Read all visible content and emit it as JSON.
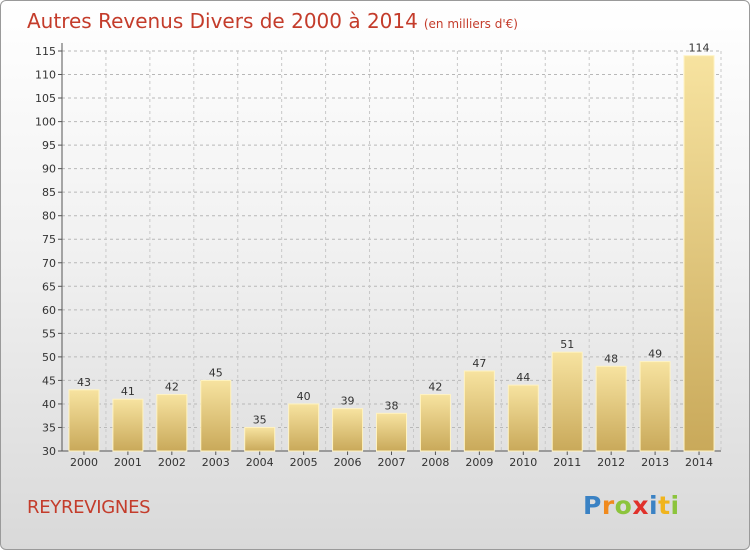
{
  "header": {
    "title": "Autres Revenus Divers de 2000 à 2014",
    "subtitle": "(en milliers d'€)"
  },
  "footer": {
    "commune": "REYREVIGNES",
    "logo": "Proxiti"
  },
  "colors": {
    "title": "#c43c2b",
    "bar_light": "#f7e3a0",
    "bar_dark": "#c9a95a"
  },
  "chart_data": {
    "type": "bar",
    "title": "Autres Revenus Divers de 2000 à 2014",
    "subtitle": "(en milliers d'€)",
    "xlabel": "",
    "ylabel": "",
    "categories": [
      "2000",
      "2001",
      "2002",
      "2003",
      "2004",
      "2005",
      "2006",
      "2007",
      "2008",
      "2009",
      "2010",
      "2011",
      "2012",
      "2013",
      "2014"
    ],
    "values": [
      43,
      41,
      42,
      45,
      35,
      40,
      39,
      38,
      42,
      47,
      44,
      51,
      48,
      49,
      114
    ],
    "ylim": [
      30,
      115
    ],
    "yticks": [
      30,
      35,
      40,
      45,
      50,
      55,
      60,
      65,
      70,
      75,
      80,
      85,
      90,
      95,
      100,
      105,
      110,
      115
    ],
    "grid": true,
    "legend": "none"
  }
}
